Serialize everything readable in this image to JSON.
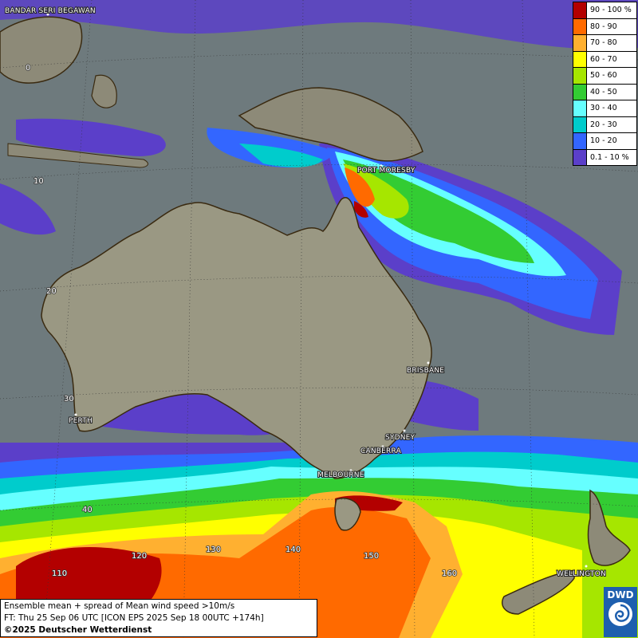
{
  "legend": [
    {
      "label": "90 - 100 %",
      "color": "#b30000"
    },
    {
      "label": "80 - 90",
      "color": "#ff6a00"
    },
    {
      "label": "70 - 80",
      "color": "#ffb030"
    },
    {
      "label": "60 - 70",
      "color": "#ffff00"
    },
    {
      "label": "50 - 60",
      "color": "#a6e600"
    },
    {
      "label": "40 - 50",
      "color": "#33cc33"
    },
    {
      "label": "30 - 40",
      "color": "#66ffff"
    },
    {
      "label": "20 - 30",
      "color": "#00cccc"
    },
    {
      "label": "10 - 20",
      "color": "#3366ff"
    },
    {
      "label": "0.1 - 10 %",
      "color": "#5b3fc9"
    }
  ],
  "cities": {
    "bandar": "BANDAR SERI BEGAWAN",
    "port_moresby": "PORT MORESBY",
    "brisbane": "BRISBANE",
    "perth": "PERTH",
    "sydney": "SYDNEY",
    "canberra": "CANBERRA",
    "melbourne": "MELBOURNE",
    "wellington": "WELLINGTON"
  },
  "lat_labels": {
    "l0": "0",
    "l10": "10",
    "l20": "20",
    "l30": "30",
    "l40": "40"
  },
  "lon_labels": {
    "m120": "120",
    "m130": "130",
    "m140": "140",
    "m150": "150",
    "m160": "160",
    "m110": "110"
  },
  "footer": {
    "line1": "Ensemble mean + spread of Mean wind speed >10m/s",
    "line2": "FT: Thu 25 Sep 06 UTC [ICON EPS 2025 Sep 18 00UTC +174h]",
    "line3": "©2025 Deutscher Wetterdienst"
  },
  "logo": {
    "text": "DWD"
  }
}
